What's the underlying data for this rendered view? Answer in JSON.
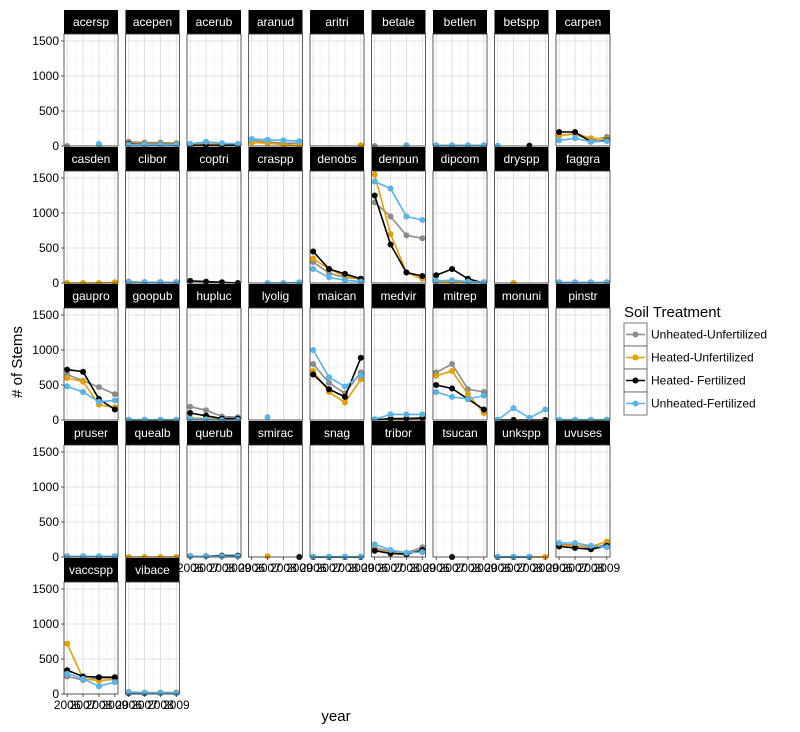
{
  "chart_data": {
    "type": "line",
    "title": "",
    "xlabel": "year",
    "ylabel": "# of  Stems",
    "x": [
      2006,
      2007,
      2008,
      2009
    ],
    "x_tick_labels": [
      "2006",
      "2007",
      "2008",
      "2009"
    ],
    "ylim": [
      0,
      1600
    ],
    "y_ticks": [
      0,
      500,
      1000,
      1500
    ],
    "y_tick_labels": [
      "0",
      "500",
      "1000",
      "1500"
    ],
    "grid": true,
    "legend": {
      "title": "Soil Treatment",
      "placement": "right"
    },
    "series_styles": [
      {
        "name": "Unheated-Unfertilized",
        "color": "#8c8c8c"
      },
      {
        "name": "Heated-Unfertilized",
        "color": "#e69f00"
      },
      {
        "name": "Heated- Fertilized",
        "color": "#000000"
      },
      {
        "name": "Unheated-Fertilized",
        "color": "#56b4e9"
      }
    ],
    "panels": [
      {
        "label": "acersp",
        "series": [
          [
            0,
            null,
            20,
            null
          ],
          [
            null,
            null,
            null,
            null
          ],
          [
            null,
            null,
            null,
            null
          ],
          [
            null,
            null,
            30,
            null
          ]
        ]
      },
      {
        "label": "acepen",
        "series": [
          [
            60,
            50,
            50,
            40
          ],
          [
            40,
            30,
            30,
            30
          ],
          [
            30,
            20,
            20,
            20
          ],
          [
            20,
            20,
            20,
            20
          ]
        ]
      },
      {
        "label": "acerub",
        "series": [
          [
            30,
            30,
            20,
            20
          ],
          [
            20,
            20,
            20,
            20
          ],
          [
            10,
            10,
            10,
            10
          ],
          [
            30,
            60,
            40,
            30
          ]
        ]
      },
      {
        "label": "aranud",
        "series": [
          [
            80,
            60,
            40,
            40
          ],
          [
            50,
            40,
            20,
            10
          ],
          [
            null,
            null,
            null,
            null
          ],
          [
            100,
            90,
            80,
            70
          ]
        ]
      },
      {
        "label": "aritri",
        "series": [
          [
            null,
            null,
            null,
            null
          ],
          [
            null,
            null,
            null,
            10
          ],
          [
            null,
            null,
            null,
            null
          ],
          [
            null,
            null,
            null,
            null
          ]
        ]
      },
      {
        "label": "betale",
        "series": [
          [
            0,
            null,
            5,
            null
          ],
          [
            null,
            null,
            null,
            null
          ],
          [
            null,
            null,
            null,
            null
          ],
          [
            null,
            null,
            10,
            null
          ]
        ]
      },
      {
        "label": "betlen",
        "series": [
          [
            5,
            5,
            5,
            5
          ],
          [
            5,
            5,
            5,
            5
          ],
          [
            5,
            5,
            5,
            5
          ],
          [
            10,
            10,
            10,
            10
          ]
        ]
      },
      {
        "label": "betspp",
        "series": [
          [
            null,
            null,
            null,
            null
          ],
          [
            null,
            null,
            null,
            null
          ],
          [
            0,
            null,
            5,
            null
          ],
          [
            5,
            null,
            null,
            null
          ]
        ]
      },
      {
        "label": "carpen",
        "series": [
          [
            150,
            170,
            80,
            130
          ],
          [
            150,
            180,
            110,
            100
          ],
          [
            200,
            200,
            60,
            80
          ],
          [
            80,
            110,
            60,
            70
          ]
        ]
      },
      {
        "label": "casden",
        "series": [
          [
            null,
            null,
            null,
            null
          ],
          [
            0,
            0,
            0,
            10
          ],
          [
            null,
            null,
            null,
            null
          ],
          [
            null,
            null,
            null,
            null
          ]
        ]
      },
      {
        "label": "clibor",
        "series": [
          [
            10,
            10,
            10,
            10
          ],
          [
            20,
            10,
            10,
            10
          ],
          [
            10,
            10,
            10,
            10
          ],
          [
            10,
            10,
            10,
            10
          ]
        ]
      },
      {
        "label": "coptri",
        "series": [
          [
            null,
            null,
            null,
            null
          ],
          [
            null,
            null,
            null,
            null
          ],
          [
            30,
            20,
            10,
            0
          ],
          [
            null,
            null,
            null,
            null
          ]
        ]
      },
      {
        "label": "craspp",
        "series": [
          [
            null,
            null,
            null,
            null
          ],
          [
            null,
            null,
            null,
            null
          ],
          [
            null,
            null,
            null,
            null
          ],
          [
            null,
            0,
            0,
            10
          ]
        ]
      },
      {
        "label": "denobs",
        "series": [
          [
            300,
            140,
            80,
            60
          ],
          [
            350,
            200,
            100,
            50
          ],
          [
            450,
            200,
            130,
            60
          ],
          [
            200,
            80,
            40,
            20
          ]
        ]
      },
      {
        "label": "denpun",
        "series": [
          [
            1150,
            950,
            680,
            640
          ],
          [
            1550,
            700,
            150,
            60
          ],
          [
            1250,
            550,
            150,
            100
          ],
          [
            1450,
            1350,
            950,
            900
          ]
        ]
      },
      {
        "label": "dipcom",
        "series": [
          [
            30,
            30,
            10,
            10
          ],
          [
            20,
            10,
            10,
            10
          ],
          [
            110,
            200,
            60,
            0
          ],
          [
            30,
            40,
            20,
            10
          ]
        ]
      },
      {
        "label": "dryspp",
        "series": [
          [
            null,
            null,
            null,
            null
          ],
          [
            null,
            0,
            null,
            null
          ],
          [
            null,
            null,
            null,
            null
          ],
          [
            null,
            null,
            null,
            null
          ]
        ]
      },
      {
        "label": "faggra",
        "series": [
          [
            10,
            10,
            10,
            10
          ],
          [
            5,
            5,
            5,
            5
          ],
          [
            5,
            5,
            5,
            5
          ],
          [
            10,
            10,
            10,
            10
          ]
        ]
      },
      {
        "label": "gaupro",
        "series": [
          [
            650,
            560,
            470,
            370
          ],
          [
            600,
            550,
            220,
            180
          ],
          [
            720,
            690,
            300,
            150
          ],
          [
            480,
            400,
            260,
            280
          ]
        ]
      },
      {
        "label": "goopub",
        "series": [
          [
            0,
            0,
            0,
            0
          ],
          [
            0,
            0,
            0,
            0
          ],
          [
            0,
            0,
            0,
            0
          ],
          [
            5,
            5,
            5,
            5
          ]
        ]
      },
      {
        "label": "hupluc",
        "series": [
          [
            190,
            140,
            50,
            40
          ],
          [
            30,
            20,
            10,
            10
          ],
          [
            100,
            60,
            20,
            20
          ],
          [
            20,
            10,
            0,
            0
          ]
        ]
      },
      {
        "label": "lyolig",
        "series": [
          [
            null,
            null,
            null,
            null
          ],
          [
            null,
            null,
            null,
            null
          ],
          [
            null,
            null,
            null,
            null
          ],
          [
            null,
            40,
            null,
            null
          ]
        ]
      },
      {
        "label": "maican",
        "series": [
          [
            800,
            530,
            380,
            680
          ],
          [
            700,
            400,
            250,
            580
          ],
          [
            650,
            440,
            330,
            890
          ],
          [
            1000,
            610,
            480,
            640
          ]
        ]
      },
      {
        "label": "medvir",
        "series": [
          [
            10,
            10,
            10,
            10
          ],
          [
            0,
            10,
            10,
            20
          ],
          [
            0,
            20,
            20,
            30
          ],
          [
            10,
            80,
            80,
            80
          ]
        ]
      },
      {
        "label": "mitrep",
        "series": [
          [
            680,
            800,
            440,
            400
          ],
          [
            630,
            700,
            370,
            100
          ],
          [
            500,
            450,
            300,
            150
          ],
          [
            400,
            330,
            300,
            350
          ]
        ]
      },
      {
        "label": "monuni",
        "series": [
          [
            0,
            0,
            0,
            0
          ],
          [
            0,
            0,
            0,
            0
          ],
          [
            0,
            0,
            0,
            0
          ],
          [
            0,
            170,
            30,
            150
          ]
        ]
      },
      {
        "label": "pinstr",
        "series": [
          [
            0,
            0,
            0,
            0
          ],
          [
            0,
            0,
            0,
            0
          ],
          [
            0,
            0,
            0,
            0
          ],
          [
            5,
            5,
            5,
            5
          ]
        ]
      },
      {
        "label": "pruser",
        "series": [
          [
            10,
            10,
            10,
            10
          ],
          [
            10,
            10,
            10,
            10
          ],
          [
            5,
            5,
            5,
            5
          ],
          [
            10,
            10,
            10,
            10
          ]
        ]
      },
      {
        "label": "quealb",
        "series": [
          [
            null,
            null,
            null,
            null
          ],
          [
            0,
            0,
            0,
            0
          ],
          [
            null,
            null,
            null,
            null
          ],
          [
            null,
            null,
            null,
            null
          ]
        ]
      },
      {
        "label": "querub",
        "series": [
          [
            10,
            10,
            10,
            10
          ],
          [
            10,
            10,
            10,
            10
          ],
          [
            10,
            10,
            20,
            20
          ],
          [
            10,
            10,
            10,
            10
          ]
        ]
      },
      {
        "label": "smirac",
        "series": [
          [
            null,
            null,
            null,
            null
          ],
          [
            null,
            10,
            null,
            null
          ],
          [
            null,
            null,
            null,
            0
          ],
          [
            null,
            null,
            null,
            null
          ]
        ]
      },
      {
        "label": "snag",
        "series": [
          [
            0,
            0,
            0,
            0
          ],
          [
            0,
            0,
            0,
            0
          ],
          [
            0,
            0,
            0,
            0
          ],
          [
            5,
            5,
            5,
            5
          ]
        ]
      },
      {
        "label": "tribor",
        "series": [
          [
            130,
            80,
            60,
            140
          ],
          [
            100,
            60,
            50,
            80
          ],
          [
            90,
            50,
            40,
            100
          ],
          [
            180,
            100,
            60,
            70
          ]
        ]
      },
      {
        "label": "tsucan",
        "series": [
          [
            null,
            null,
            null,
            null
          ],
          [
            null,
            null,
            null,
            null
          ],
          [
            null,
            0,
            null,
            null
          ],
          [
            null,
            null,
            null,
            null
          ]
        ]
      },
      {
        "label": "unkspp",
        "series": [
          [
            0,
            0,
            0,
            0
          ],
          [
            0,
            0,
            0,
            0
          ],
          [
            0,
            0,
            0,
            null
          ],
          [
            5,
            5,
            5,
            null
          ]
        ]
      },
      {
        "label": "uvuses",
        "series": [
          [
            180,
            170,
            130,
            180
          ],
          [
            170,
            160,
            150,
            220
          ],
          [
            150,
            130,
            110,
            160
          ],
          [
            200,
            200,
            160,
            140
          ]
        ]
      },
      {
        "label": "vaccspp",
        "series": [
          [
            250,
            200,
            230,
            230
          ],
          [
            720,
            220,
            190,
            210
          ],
          [
            340,
            250,
            240,
            240
          ],
          [
            290,
            220,
            110,
            170
          ]
        ]
      },
      {
        "label": "vibace",
        "series": [
          [
            30,
            20,
            20,
            20
          ],
          [
            20,
            20,
            10,
            10
          ],
          [
            10,
            10,
            10,
            10
          ],
          [
            20,
            20,
            10,
            10
          ]
        ]
      }
    ]
  }
}
